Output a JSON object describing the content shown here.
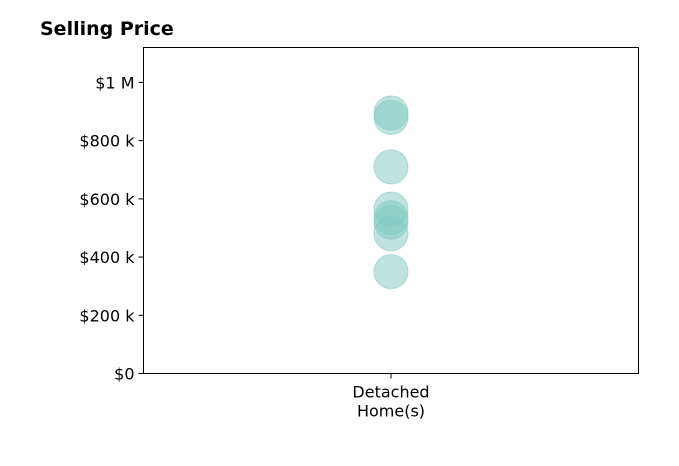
{
  "chart_data": {
    "type": "scatter",
    "title": "Selling Price",
    "xlabel": "",
    "ylabel": "",
    "categories": [
      [
        "Detached",
        "Home(s)"
      ]
    ],
    "ylim": [
      0,
      1120000
    ],
    "yticks": [
      {
        "value": 0,
        "label": "$0"
      },
      {
        "value": 200000,
        "label": "$200 k"
      },
      {
        "value": 400000,
        "label": "$400 k"
      },
      {
        "value": 600000,
        "label": "$600 k"
      },
      {
        "value": 800000,
        "label": "$800 k"
      },
      {
        "value": 1000000,
        "label": "$1 M"
      }
    ],
    "grid": false,
    "marker_color": "#7fc9c0",
    "series": [
      {
        "category": 0,
        "values": [
          350000,
          480000,
          520000,
          535000,
          565000,
          710000,
          880000,
          895000
        ]
      }
    ]
  }
}
